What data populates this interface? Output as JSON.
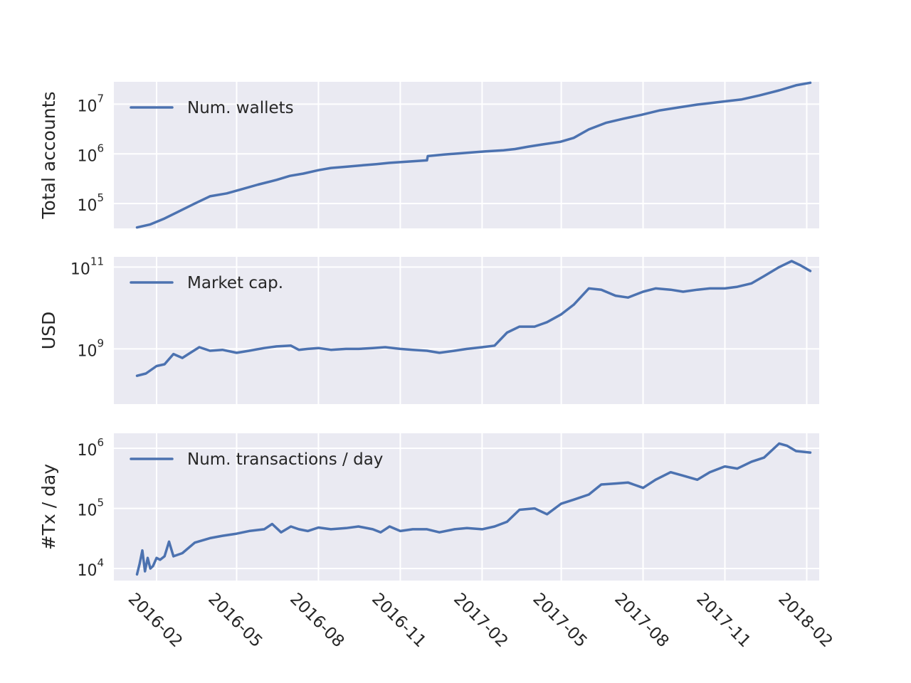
{
  "chart_data": [
    {
      "type": "line",
      "ylabel": "Total accounts",
      "yscale": "log",
      "ylim_exp": [
        4.5,
        7.45
      ],
      "yticks": [
        {
          "base": "10",
          "exp": "5"
        },
        {
          "base": "10",
          "exp": "6"
        },
        {
          "base": "10",
          "exp": "7"
        }
      ],
      "legend": "top-left",
      "series": [
        {
          "name": "Num. wallets",
          "x": [
            "2016-01-10",
            "2016-01-25",
            "2016-02-10",
            "2016-02-25",
            "2016-03-15",
            "2016-04-01",
            "2016-04-20",
            "2016-05-05",
            "2016-05-25",
            "2016-06-15",
            "2016-06-30",
            "2016-07-15",
            "2016-08-01",
            "2016-08-15",
            "2016-09-01",
            "2016-09-20",
            "2016-10-05",
            "2016-10-20",
            "2016-11-10",
            "2016-12-01",
            "2016-12-02",
            "2016-12-20",
            "2017-01-15",
            "2017-02-05",
            "2017-02-25",
            "2017-03-10",
            "2017-03-25",
            "2017-04-10",
            "2017-04-30",
            "2017-05-15",
            "2017-06-01",
            "2017-06-20",
            "2017-07-10",
            "2017-07-30",
            "2017-08-20",
            "2017-09-10",
            "2017-10-01",
            "2017-10-25",
            "2017-11-20",
            "2017-12-10",
            "2018-01-01",
            "2018-01-20",
            "2018-02-05"
          ],
          "y": [
            33000,
            38000,
            50000,
            68000,
            100000,
            140000,
            160000,
            190000,
            240000,
            300000,
            360000,
            400000,
            470000,
            520000,
            550000,
            590000,
            620000,
            660000,
            700000,
            740000,
            900000,
            970000,
            1050000,
            1120000,
            1180000,
            1250000,
            1400000,
            1550000,
            1750000,
            2100000,
            3100000,
            4200000,
            5100000,
            6100000,
            7500000,
            8600000,
            9800000,
            11000000,
            12500000,
            15000000,
            19000000,
            24000000,
            27000000
          ]
        }
      ]
    },
    {
      "type": "line",
      "ylabel": "USD",
      "yscale": "log",
      "ylim_exp": [
        7.65,
        11.25
      ],
      "yticks": [
        {
          "base": "10",
          "exp": "9"
        },
        {
          "base": "10",
          "exp": "11"
        }
      ],
      "legend": "top-left",
      "series": [
        {
          "name": "Market cap.",
          "x": [
            "2016-01-10",
            "2016-01-20",
            "2016-02-01",
            "2016-02-10",
            "2016-02-20",
            "2016-03-01",
            "2016-03-10",
            "2016-03-20",
            "2016-04-01",
            "2016-04-15",
            "2016-05-01",
            "2016-05-15",
            "2016-06-01",
            "2016-06-15",
            "2016-07-01",
            "2016-07-10",
            "2016-07-20",
            "2016-08-01",
            "2016-08-15",
            "2016-09-01",
            "2016-09-15",
            "2016-10-01",
            "2016-10-15",
            "2016-11-01",
            "2016-11-15",
            "2016-12-01",
            "2016-12-15",
            "2017-01-01",
            "2017-01-15",
            "2017-02-01",
            "2017-02-15",
            "2017-03-01",
            "2017-03-15",
            "2017-04-01",
            "2017-04-15",
            "2017-05-01",
            "2017-05-15",
            "2017-06-01",
            "2017-06-15",
            "2017-07-01",
            "2017-07-15",
            "2017-08-01",
            "2017-08-15",
            "2017-09-01",
            "2017-09-15",
            "2017-10-01",
            "2017-10-15",
            "2017-11-01",
            "2017-11-15",
            "2017-12-01",
            "2017-12-15",
            "2018-01-01",
            "2018-01-15",
            "2018-01-25",
            "2018-02-05"
          ],
          "y": [
            220000000,
            250000000,
            380000000,
            420000000,
            750000000,
            600000000,
            800000000,
            1100000000,
            900000000,
            950000000,
            800000000,
            900000000,
            1050000000,
            1150000000,
            1200000000,
            950000000,
            1000000000,
            1050000000,
            950000000,
            1000000000,
            1000000000,
            1050000000,
            1100000000,
            1000000000,
            950000000,
            900000000,
            800000000,
            900000000,
            1000000000,
            1100000000,
            1200000000,
            2500000000,
            3500000000,
            3500000000,
            4500000000,
            7000000000,
            12000000000,
            30000000000,
            28000000000,
            20000000000,
            18000000000,
            25000000000,
            30000000000,
            28000000000,
            25000000000,
            28000000000,
            30000000000,
            30000000000,
            33000000000,
            40000000000,
            60000000000,
            100000000000,
            140000000000,
            110000000000,
            80000000000
          ]
        }
      ]
    },
    {
      "type": "line",
      "ylabel": "#Tx / day",
      "yscale": "log",
      "ylim_exp": [
        3.8,
        6.25
      ],
      "yticks": [
        {
          "base": "10",
          "exp": "4"
        },
        {
          "base": "10",
          "exp": "5"
        },
        {
          "base": "10",
          "exp": "6"
        }
      ],
      "legend": "top-left",
      "series": [
        {
          "name": "Num. transactions / day",
          "x": [
            "2016-01-10",
            "2016-01-13",
            "2016-01-16",
            "2016-01-19",
            "2016-01-22",
            "2016-01-25",
            "2016-01-28",
            "2016-02-01",
            "2016-02-05",
            "2016-02-10",
            "2016-02-15",
            "2016-02-20",
            "2016-03-01",
            "2016-03-15",
            "2016-04-01",
            "2016-04-15",
            "2016-05-01",
            "2016-05-15",
            "2016-06-01",
            "2016-06-10",
            "2016-06-20",
            "2016-07-01",
            "2016-07-10",
            "2016-07-20",
            "2016-08-01",
            "2016-08-15",
            "2016-09-01",
            "2016-09-15",
            "2016-10-01",
            "2016-10-10",
            "2016-10-20",
            "2016-11-01",
            "2016-11-15",
            "2016-12-01",
            "2016-12-15",
            "2017-01-01",
            "2017-01-15",
            "2017-02-01",
            "2017-02-15",
            "2017-03-01",
            "2017-03-15",
            "2017-04-01",
            "2017-04-15",
            "2017-05-01",
            "2017-05-15",
            "2017-06-01",
            "2017-06-15",
            "2017-07-01",
            "2017-07-15",
            "2017-08-01",
            "2017-08-15",
            "2017-09-01",
            "2017-09-15",
            "2017-10-01",
            "2017-10-15",
            "2017-11-01",
            "2017-11-15",
            "2017-12-01",
            "2017-12-15",
            "2018-01-01",
            "2018-01-10",
            "2018-01-20",
            "2018-02-05"
          ],
          "y": [
            8000,
            12000,
            20000,
            9000,
            15000,
            10000,
            11000,
            15000,
            14000,
            16000,
            28000,
            16000,
            18000,
            27000,
            32000,
            35000,
            38000,
            42000,
            45000,
            55000,
            40000,
            50000,
            45000,
            42000,
            48000,
            45000,
            47000,
            50000,
            45000,
            40000,
            50000,
            42000,
            45000,
            45000,
            40000,
            45000,
            47000,
            45000,
            50000,
            60000,
            95000,
            100000,
            80000,
            120000,
            140000,
            170000,
            250000,
            260000,
            270000,
            220000,
            300000,
            400000,
            350000,
            300000,
            400000,
            500000,
            460000,
            600000,
            700000,
            1200000,
            1100000,
            900000,
            850000
          ]
        }
      ]
    }
  ],
  "x_axis": {
    "start": "2015-12-15",
    "end": "2018-02-15",
    "ticks": [
      "2016-02",
      "2016-05",
      "2016-08",
      "2016-11",
      "2017-02",
      "2017-05",
      "2017-08",
      "2017-11",
      "2018-02"
    ]
  },
  "colors": {
    "line": "#4c72b0",
    "panel_background": "#eaeaf2",
    "grid": "#ffffff"
  }
}
